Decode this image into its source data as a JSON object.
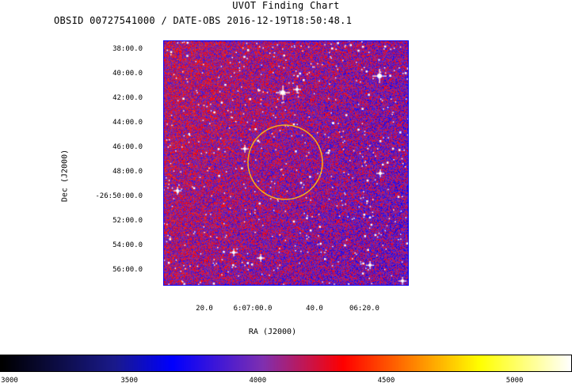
{
  "header": {
    "title": "UVOT Finding Chart",
    "subtitle": "OBSID 00727541000 / DATE-OBS 2016-12-19T18:50:48.1"
  },
  "axes": {
    "dec_label": "Dec  (J2000)",
    "ra_label": "RA  (J2000)",
    "dec_ticks": [
      "38:00.0",
      "40:00.0",
      "42:00.0",
      "44:00.0",
      "46:00.0",
      "48:00.0",
      "-26:50:00.0",
      "52:00.0",
      "54:00.0",
      "56:00.0"
    ],
    "ra_ticks": [
      "20.0",
      "6:07:00.0",
      "40.0",
      "06:20.0"
    ]
  },
  "colorbar": {
    "ticks": [
      "3000",
      "3500",
      "4000",
      "4500",
      "5000"
    ],
    "range": [
      3000,
      5220
    ],
    "stops": [
      {
        "v": 0.0,
        "c": "#000000"
      },
      {
        "v": 0.2,
        "c": "#1a1a8c"
      },
      {
        "v": 0.3,
        "c": "#0000ff"
      },
      {
        "v": 0.46,
        "c": "#8030b0"
      },
      {
        "v": 0.6,
        "c": "#ff0000"
      },
      {
        "v": 0.72,
        "c": "#ff8000"
      },
      {
        "v": 0.84,
        "c": "#ffff00"
      },
      {
        "v": 1.0,
        "c": "#ffffff"
      }
    ]
  },
  "field": {
    "source_circle_color": "#f0b020"
  }
}
